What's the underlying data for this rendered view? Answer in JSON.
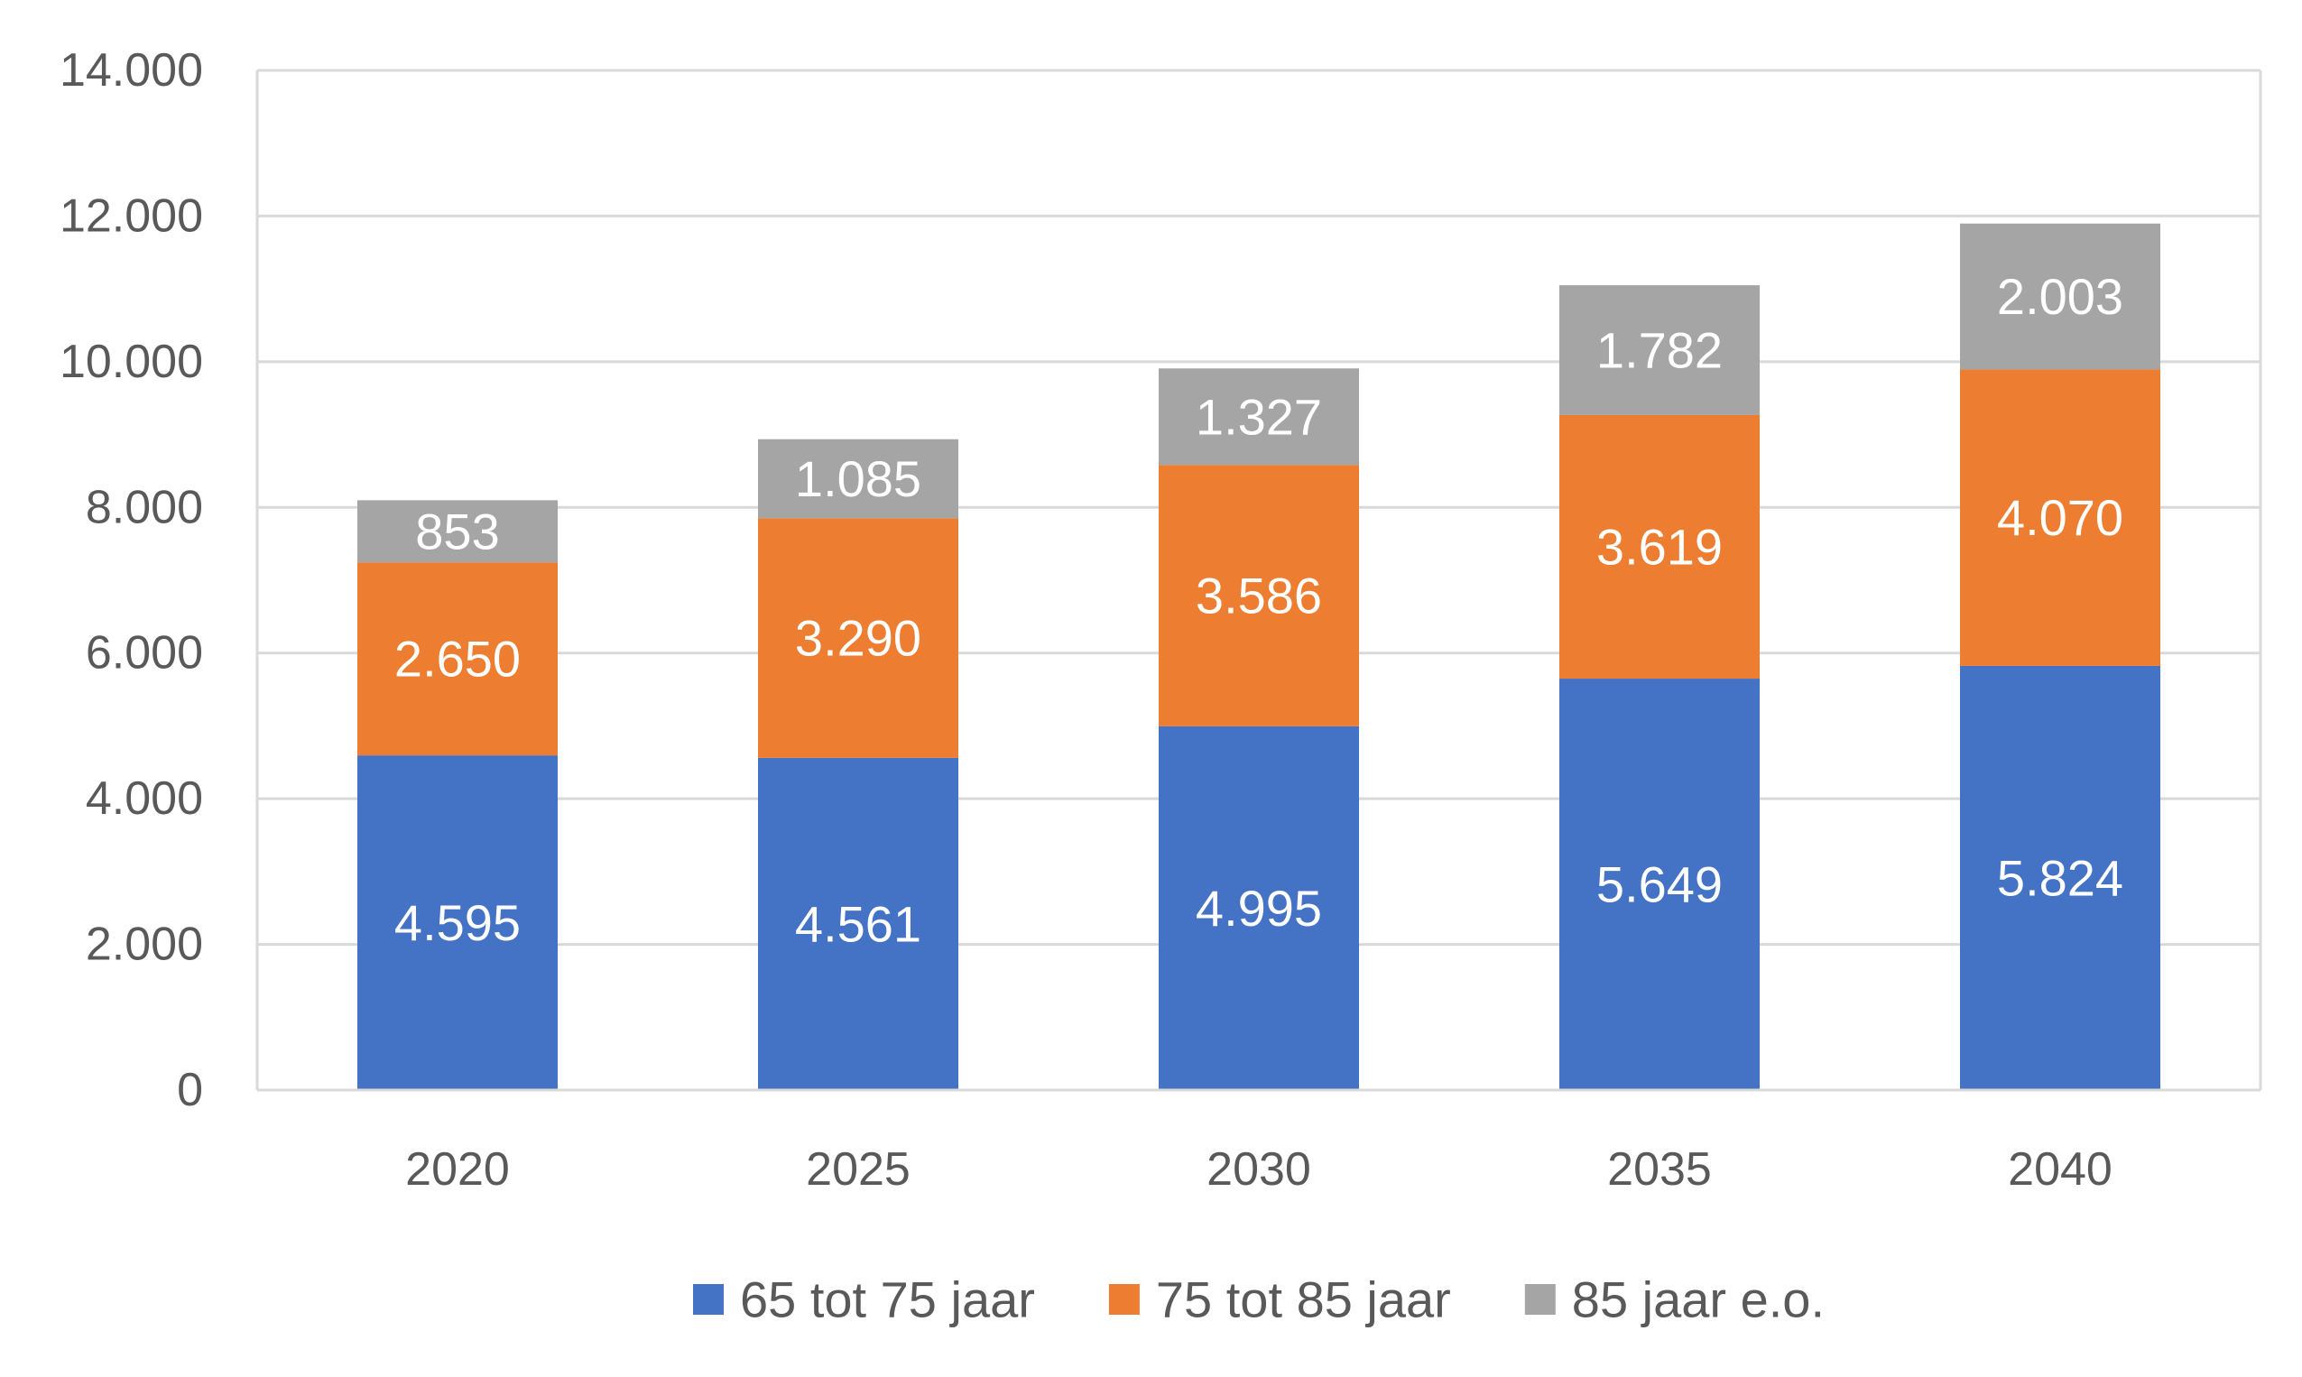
{
  "chart_data": {
    "type": "bar",
    "stacked": true,
    "categories": [
      "2020",
      "2025",
      "2030",
      "2035",
      "2040"
    ],
    "series": [
      {
        "name": "65 tot 75 jaar",
        "color": "#4472C4",
        "values": [
          4595,
          4561,
          4995,
          5649,
          5824
        ],
        "labels": [
          "4.595",
          "4.561",
          "4.995",
          "5.649",
          "5.824"
        ]
      },
      {
        "name": "75 tot 85 jaar",
        "color": "#ED7D31",
        "values": [
          2650,
          3290,
          3586,
          3619,
          4070
        ],
        "labels": [
          "2.650",
          "3.290",
          "3.586",
          "3.619",
          "4.070"
        ]
      },
      {
        "name": "85 jaar e.o.",
        "color": "#A5A5A5",
        "values": [
          853,
          1085,
          1327,
          1782,
          2003
        ],
        "labels": [
          "853",
          "1.085",
          "1.327",
          "1.782",
          "2.003"
        ]
      }
    ],
    "ylim": [
      0,
      14000
    ],
    "yticks": [
      0,
      2000,
      4000,
      6000,
      8000,
      10000,
      12000,
      14000
    ],
    "ytick_labels": [
      "0",
      "2.000",
      "4.000",
      "6.000",
      "8.000",
      "10.000",
      "12.000",
      "14.000"
    ],
    "grid": true,
    "legend_position": "bottom",
    "title": "",
    "xlabel": "",
    "ylabel": ""
  }
}
